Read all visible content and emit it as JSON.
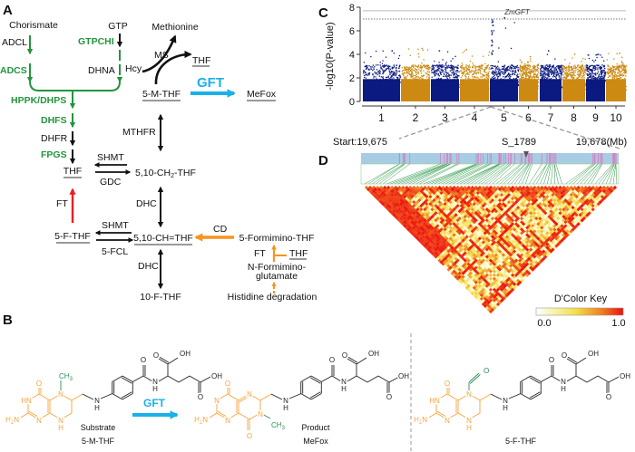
{
  "panels": {
    "a": "A",
    "b": "B",
    "c": "C",
    "d": "D"
  },
  "pathway": {
    "chorismate": "Chorismate",
    "adcl": "ADCL",
    "adcs": "ADCS",
    "gtp": "GTP",
    "gtpchi": "GTPCHI",
    "dhna": "DHNA",
    "methionine": "Methionine",
    "ms": "MS",
    "hcy": "Hcy",
    "thf_ms": "THF",
    "m_thf": "5-M-THF",
    "gft": "GFT",
    "mefox": "MeFox",
    "hppk": "HPPK/DHPS",
    "dhfs": "DHFS",
    "dhfr": "DHFR",
    "fpgs": "FPGS",
    "thf": "THF",
    "mthfr": "MTHFR",
    "shmt1": "SHMT",
    "gdc": "GDC",
    "ch2_prefix": "5,10-CH",
    "ch2_sub": "2",
    "ch2_suffix": "-THF",
    "dhc1": "DHC",
    "ft": "FT",
    "f_thf": "5-F-THF",
    "shmt2": "SHMT",
    "fcl": "5-FCL",
    "ch_thf": "5,10-CH=THF",
    "cd": "CD",
    "formimino_thf": "5-Formimino-THF",
    "ft2": "FT",
    "thf2": "THF",
    "nfg1": "N-Formimino-",
    "nfg2": "glutamate",
    "dhc2": "DHC",
    "f10_thf": "10-F-THF",
    "histidine": "Histidine degradation",
    "colors": {
      "enzyme_green": "#23953c",
      "gft_blue": "#1ab0ea",
      "ft_red": "#ee1c24",
      "histidine_orange": "#f7941d"
    }
  },
  "chart_data": {
    "type": "scatter",
    "ylabel": "-log10(P-value)",
    "xlabel": "",
    "ylim": [
      0,
      8
    ],
    "yticks": [
      "0",
      "2",
      "4",
      "6",
      "8"
    ],
    "categories": [
      "1",
      "2",
      "3",
      "4",
      "5",
      "6",
      "7",
      "8",
      "9",
      "10"
    ],
    "series_colors": [
      "#0b1a80",
      "#cc8a12"
    ],
    "peak_values": [
      4.3,
      4.5,
      4.3,
      4.4,
      7.1,
      3.8,
      4.3,
      4.0,
      4.0,
      4.1
    ],
    "threshold_lines": [
      7.7,
      7.0
    ],
    "annotation": "ZmGFT",
    "annotation_chromosome": "5",
    "grid": false
  },
  "ld": {
    "start": "Start:19,675",
    "marker": "S_1789",
    "end": "19,678(Mb)",
    "key_title": "D'Color Key",
    "key_min": "0.0",
    "key_max": "1.0",
    "colors": {
      "bar": "#a7cde3",
      "snp_tick": "#d77fbf",
      "link": "#2e9a48",
      "low": "#ffffe8",
      "high": "#ee1010"
    }
  },
  "structures": {
    "o": "O",
    "oh": "OH",
    "n": "N",
    "hn": "HN",
    "nh_h": "H",
    "h2n_h": "H",
    "h2n_2": "2",
    "h2n_n": "N",
    "ch3_c": "CH",
    "ch3_3": "3",
    "gft": "GFT",
    "substrate": "Substrate",
    "substrate_name": "5-M-THF",
    "product": "Product",
    "product_name": "MeFox",
    "third_name": "5-F-THF"
  }
}
